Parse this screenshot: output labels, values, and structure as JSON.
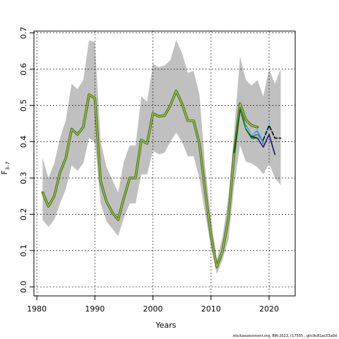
{
  "chart_data": {
    "type": "line",
    "xlabel": "Years",
    "ylabel_main": "F",
    "ylabel_sub": "3–7",
    "footer": "stockassessment.org, BW-2023, r17555 , gitc9c81ac53a0d",
    "xlim": [
      1979.5,
      2024.5
    ],
    "ylim": [
      -0.025,
      0.705
    ],
    "x_ticks": [
      1980,
      1990,
      2000,
      2010,
      2020
    ],
    "y_ticks": [
      0.0,
      0.1,
      0.2,
      0.3,
      0.4,
      0.5,
      0.6,
      0.7
    ],
    "y_tick_labels": [
      "0.0",
      "0.1",
      "0.2",
      "0.3",
      "0.4",
      "0.5",
      "0.6",
      "0.7"
    ],
    "grid": true,
    "colors": {
      "band": "#c0c0c0",
      "base_line": "#556b2f",
      "base_overlay": "#9acd32",
      "grid": "#000000"
    },
    "confidence_band": {
      "x": [
        1981,
        1982,
        1983,
        1984,
        1985,
        1986,
        1987,
        1988,
        1989,
        1990,
        1991,
        1992,
        1993,
        1994,
        1995,
        1996,
        1997,
        1998,
        1999,
        2000,
        2001,
        2002,
        2003,
        2004,
        2005,
        2006,
        2007,
        2008,
        2009,
        2010,
        2011,
        2012,
        2013,
        2014,
        2015,
        2016,
        2017,
        2018,
        2019,
        2020,
        2021,
        2022
      ],
      "upper": [
        0.355,
        0.3,
        0.34,
        0.41,
        0.46,
        0.56,
        0.545,
        0.57,
        0.68,
        0.675,
        0.4,
        0.33,
        0.295,
        0.26,
        0.345,
        0.39,
        0.39,
        0.525,
        0.51,
        0.615,
        0.605,
        0.61,
        0.625,
        0.68,
        0.645,
        0.59,
        0.595,
        0.53,
        0.33,
        0.19,
        0.075,
        0.14,
        0.25,
        0.43,
        0.635,
        0.57,
        0.555,
        0.57,
        0.525,
        0.6,
        0.56,
        0.6
      ],
      "lower": [
        0.185,
        0.165,
        0.185,
        0.23,
        0.27,
        0.335,
        0.32,
        0.34,
        0.41,
        0.4,
        0.23,
        0.18,
        0.16,
        0.14,
        0.19,
        0.23,
        0.23,
        0.31,
        0.31,
        0.375,
        0.365,
        0.37,
        0.4,
        0.425,
        0.4,
        0.36,
        0.36,
        0.3,
        0.2,
        0.11,
        0.035,
        0.075,
        0.13,
        0.28,
        0.39,
        0.345,
        0.34,
        0.33,
        0.31,
        0.34,
        0.3,
        0.28
      ]
    },
    "series": [
      {
        "color": "#556b2f",
        "overlay": "#9acd32",
        "x": [
          1981,
          1982,
          1983,
          1984,
          1985,
          1986,
          1987,
          1988,
          1989,
          1990,
          1991,
          1992,
          1993,
          1994,
          1995,
          1996,
          1997,
          1998,
          1999,
          2000,
          2001,
          2002,
          2003,
          2004,
          2005,
          2006,
          2007,
          2008,
          2009,
          2010,
          2011,
          2012,
          2013,
          2014,
          2015,
          2016,
          2017,
          2018
        ],
        "values": [
          0.26,
          0.222,
          0.25,
          0.315,
          0.355,
          0.435,
          0.42,
          0.44,
          0.53,
          0.52,
          0.29,
          0.235,
          0.205,
          0.185,
          0.245,
          0.3,
          0.3,
          0.405,
          0.395,
          0.478,
          0.47,
          0.472,
          0.5,
          0.54,
          0.505,
          0.458,
          0.458,
          0.395,
          0.265,
          0.14,
          0.055,
          0.1,
          0.19,
          0.37,
          0.505,
          0.46,
          0.445,
          0.44
        ]
      },
      {
        "color": "#006400",
        "x": [
          2014,
          2015,
          2016,
          2017,
          2018
        ],
        "values": [
          0.37,
          0.49,
          0.435,
          0.41,
          0.41
        ]
      },
      {
        "color": "#2e8b57",
        "x": [
          2015,
          2016,
          2017,
          2018,
          2019
        ],
        "values": [
          0.495,
          0.44,
          0.415,
          0.42,
          0.4
        ]
      },
      {
        "color": "#4682b4",
        "x": [
          2016,
          2017,
          2018,
          2019
        ],
        "values": [
          0.445,
          0.42,
          0.43,
          0.395
        ]
      },
      {
        "color": "#87ceeb",
        "x": [
          2016,
          2017,
          2018,
          2019,
          2020
        ],
        "values": [
          0.44,
          0.42,
          0.435,
          0.405,
          0.455
        ]
      },
      {
        "color": "#191970",
        "x": [
          2017,
          2018,
          2019,
          2020,
          2021
        ],
        "values": [
          0.415,
          0.41,
          0.385,
          0.42,
          0.365
        ]
      },
      {
        "color": "#000000",
        "dashed": true,
        "x": [
          2019,
          2020,
          2021,
          2022
        ],
        "values": [
          0.405,
          0.445,
          0.41,
          0.41
        ]
      }
    ]
  }
}
